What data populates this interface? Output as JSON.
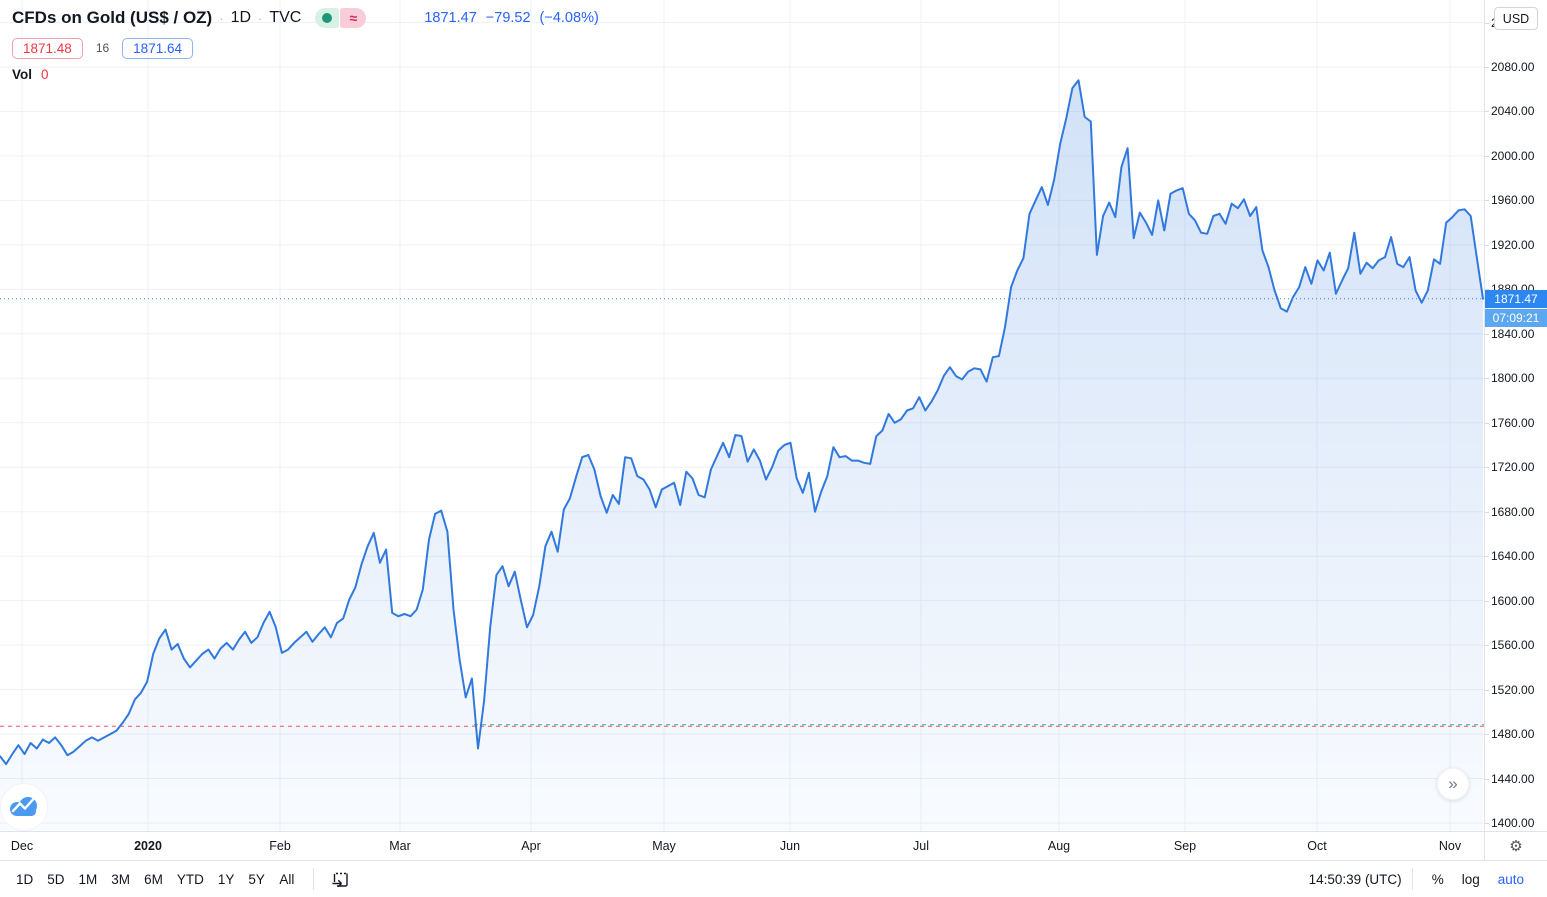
{
  "header": {
    "symbol_title": "CFDs on Gold (US$ / OZ)",
    "separator": "·",
    "interval": "1D",
    "exchange": "TVC",
    "approx_symbol": "≈",
    "last_price": "1871.47",
    "change": "−79.52",
    "change_percent": "(−4.08%)",
    "bid": "1871.48",
    "spread": "16",
    "ask": "1871.64",
    "vol_label": "Vol",
    "vol_value": "0"
  },
  "price_scale": {
    "currency_button": "USD",
    "ticks": [
      "2120.00",
      "2080.00",
      "2040.00",
      "2000.00",
      "1960.00",
      "1920.00",
      "1880.00",
      "1840.00",
      "1800.00",
      "1760.00",
      "1720.00",
      "1680.00",
      "1640.00",
      "1600.00",
      "1560.00",
      "1520.00",
      "1480.00",
      "1440.00",
      "1400.00"
    ],
    "price_tag": "1871.47",
    "countdown_tag": "07:09:21"
  },
  "time_scale": {
    "labels": [
      {
        "text": "Dec",
        "emphasis": false
      },
      {
        "text": "2020",
        "emphasis": true
      },
      {
        "text": "Feb",
        "emphasis": false
      },
      {
        "text": "Mar",
        "emphasis": false
      },
      {
        "text": "Apr",
        "emphasis": false
      },
      {
        "text": "May",
        "emphasis": false
      },
      {
        "text": "Jun",
        "emphasis": false
      },
      {
        "text": "Jul",
        "emphasis": false
      },
      {
        "text": "Aug",
        "emphasis": false
      },
      {
        "text": "Sep",
        "emphasis": false
      },
      {
        "text": "Oct",
        "emphasis": false
      },
      {
        "text": "Nov",
        "emphasis": false
      }
    ]
  },
  "toolbar": {
    "ranges": [
      "1D",
      "5D",
      "1M",
      "3M",
      "6M",
      "YTD",
      "1Y",
      "5Y",
      "All"
    ],
    "clock": "14:50:39 (UTC)",
    "percent_label": "%",
    "log_label": "log",
    "auto_label": "auto"
  },
  "colors": {
    "line_blue": "#3179de",
    "accent_blue": "#2962ff",
    "tag_blue": "#2d87f0",
    "countdown_blue": "#5ba7f2",
    "negative_red": "#f23645",
    "teal": "#26a69a",
    "grid": "#eef1f8",
    "axis_border": "#e0e3eb"
  },
  "chart_data": {
    "type": "area",
    "title": "CFDs on Gold (US$ / OZ) · 1D · TVC",
    "x_labels": [
      "Dec",
      "2020",
      "Feb",
      "Mar",
      "Apr",
      "May",
      "Jun",
      "Jul",
      "Aug",
      "Sep",
      "Oct",
      "Nov"
    ],
    "ylabel": "USD",
    "ylim": [
      1393,
      2140
    ],
    "y_ticks": [
      1400,
      1440,
      1480,
      1520,
      1560,
      1600,
      1640,
      1680,
      1720,
      1760,
      1800,
      1840,
      1880,
      1920,
      1960,
      2000,
      2040,
      2080,
      2120
    ],
    "grid": true,
    "current_price": 1871.47,
    "level_lines": [
      {
        "name": "red-dashed-level",
        "value": 1487.0,
        "color": "#f23645"
      },
      {
        "name": "teal-dashed-level",
        "value": 1488.3,
        "color": "#26a69a"
      }
    ],
    "prices": [
      1460,
      1453,
      1462,
      1470,
      1462,
      1472,
      1467,
      1475,
      1472,
      1477,
      1470,
      1461,
      1464,
      1469,
      1474,
      1477,
      1474,
      1477,
      1480,
      1483,
      1490,
      1498,
      1511,
      1517,
      1527,
      1552,
      1566,
      1574,
      1556,
      1561,
      1548,
      1540,
      1546,
      1552,
      1556,
      1548,
      1557,
      1562,
      1556,
      1565,
      1572,
      1562,
      1567,
      1580,
      1590,
      1576,
      1553,
      1556,
      1562,
      1567,
      1572,
      1563,
      1570,
      1576,
      1567,
      1580,
      1584,
      1601,
      1612,
      1633,
      1649,
      1661,
      1634,
      1646,
      1589,
      1586,
      1588,
      1586,
      1592,
      1610,
      1655,
      1678,
      1681,
      1662,
      1592,
      1547,
      1513,
      1530,
      1467,
      1510,
      1576,
      1623,
      1631,
      1613,
      1626,
      1600,
      1576,
      1587,
      1613,
      1649,
      1662,
      1644,
      1682,
      1692,
      1711,
      1729,
      1731,
      1718,
      1694,
      1679,
      1695,
      1687,
      1729,
      1728,
      1712,
      1709,
      1700,
      1684,
      1700,
      1703,
      1706,
      1686,
      1716,
      1710,
      1695,
      1693,
      1718,
      1730,
      1742,
      1729,
      1749,
      1748,
      1725,
      1736,
      1726,
      1709,
      1720,
      1735,
      1740,
      1742,
      1710,
      1697,
      1715,
      1680,
      1698,
      1712,
      1738,
      1729,
      1730,
      1726,
      1726,
      1724,
      1723,
      1748,
      1753,
      1768,
      1760,
      1763,
      1771,
      1773,
      1783,
      1771,
      1779,
      1789,
      1802,
      1810,
      1802,
      1799,
      1806,
      1809,
      1808,
      1797,
      1819,
      1820,
      1846,
      1882,
      1897,
      1908,
      1948,
      1960,
      1972,
      1956,
      1978,
      2011,
      2034,
      2061,
      2068,
      2035,
      2031,
      1911,
      1946,
      1958,
      1945,
      1990,
      2007,
      1926,
      1949,
      1940,
      1929,
      1960,
      1933,
      1966,
      1969,
      1971,
      1948,
      1942,
      1931,
      1930,
      1946,
      1948,
      1939,
      1957,
      1953,
      1961,
      1946,
      1954,
      1915,
      1900,
      1879,
      1863,
      1860,
      1873,
      1882,
      1900,
      1885,
      1906,
      1897,
      1913,
      1876,
      1888,
      1899,
      1931,
      1894,
      1904,
      1899,
      1906,
      1909,
      1927,
      1903,
      1900,
      1909,
      1879,
      1868,
      1879,
      1907,
      1903,
      1940,
      1945,
      1951,
      1952,
      1946,
      1908,
      1871.47
    ]
  }
}
